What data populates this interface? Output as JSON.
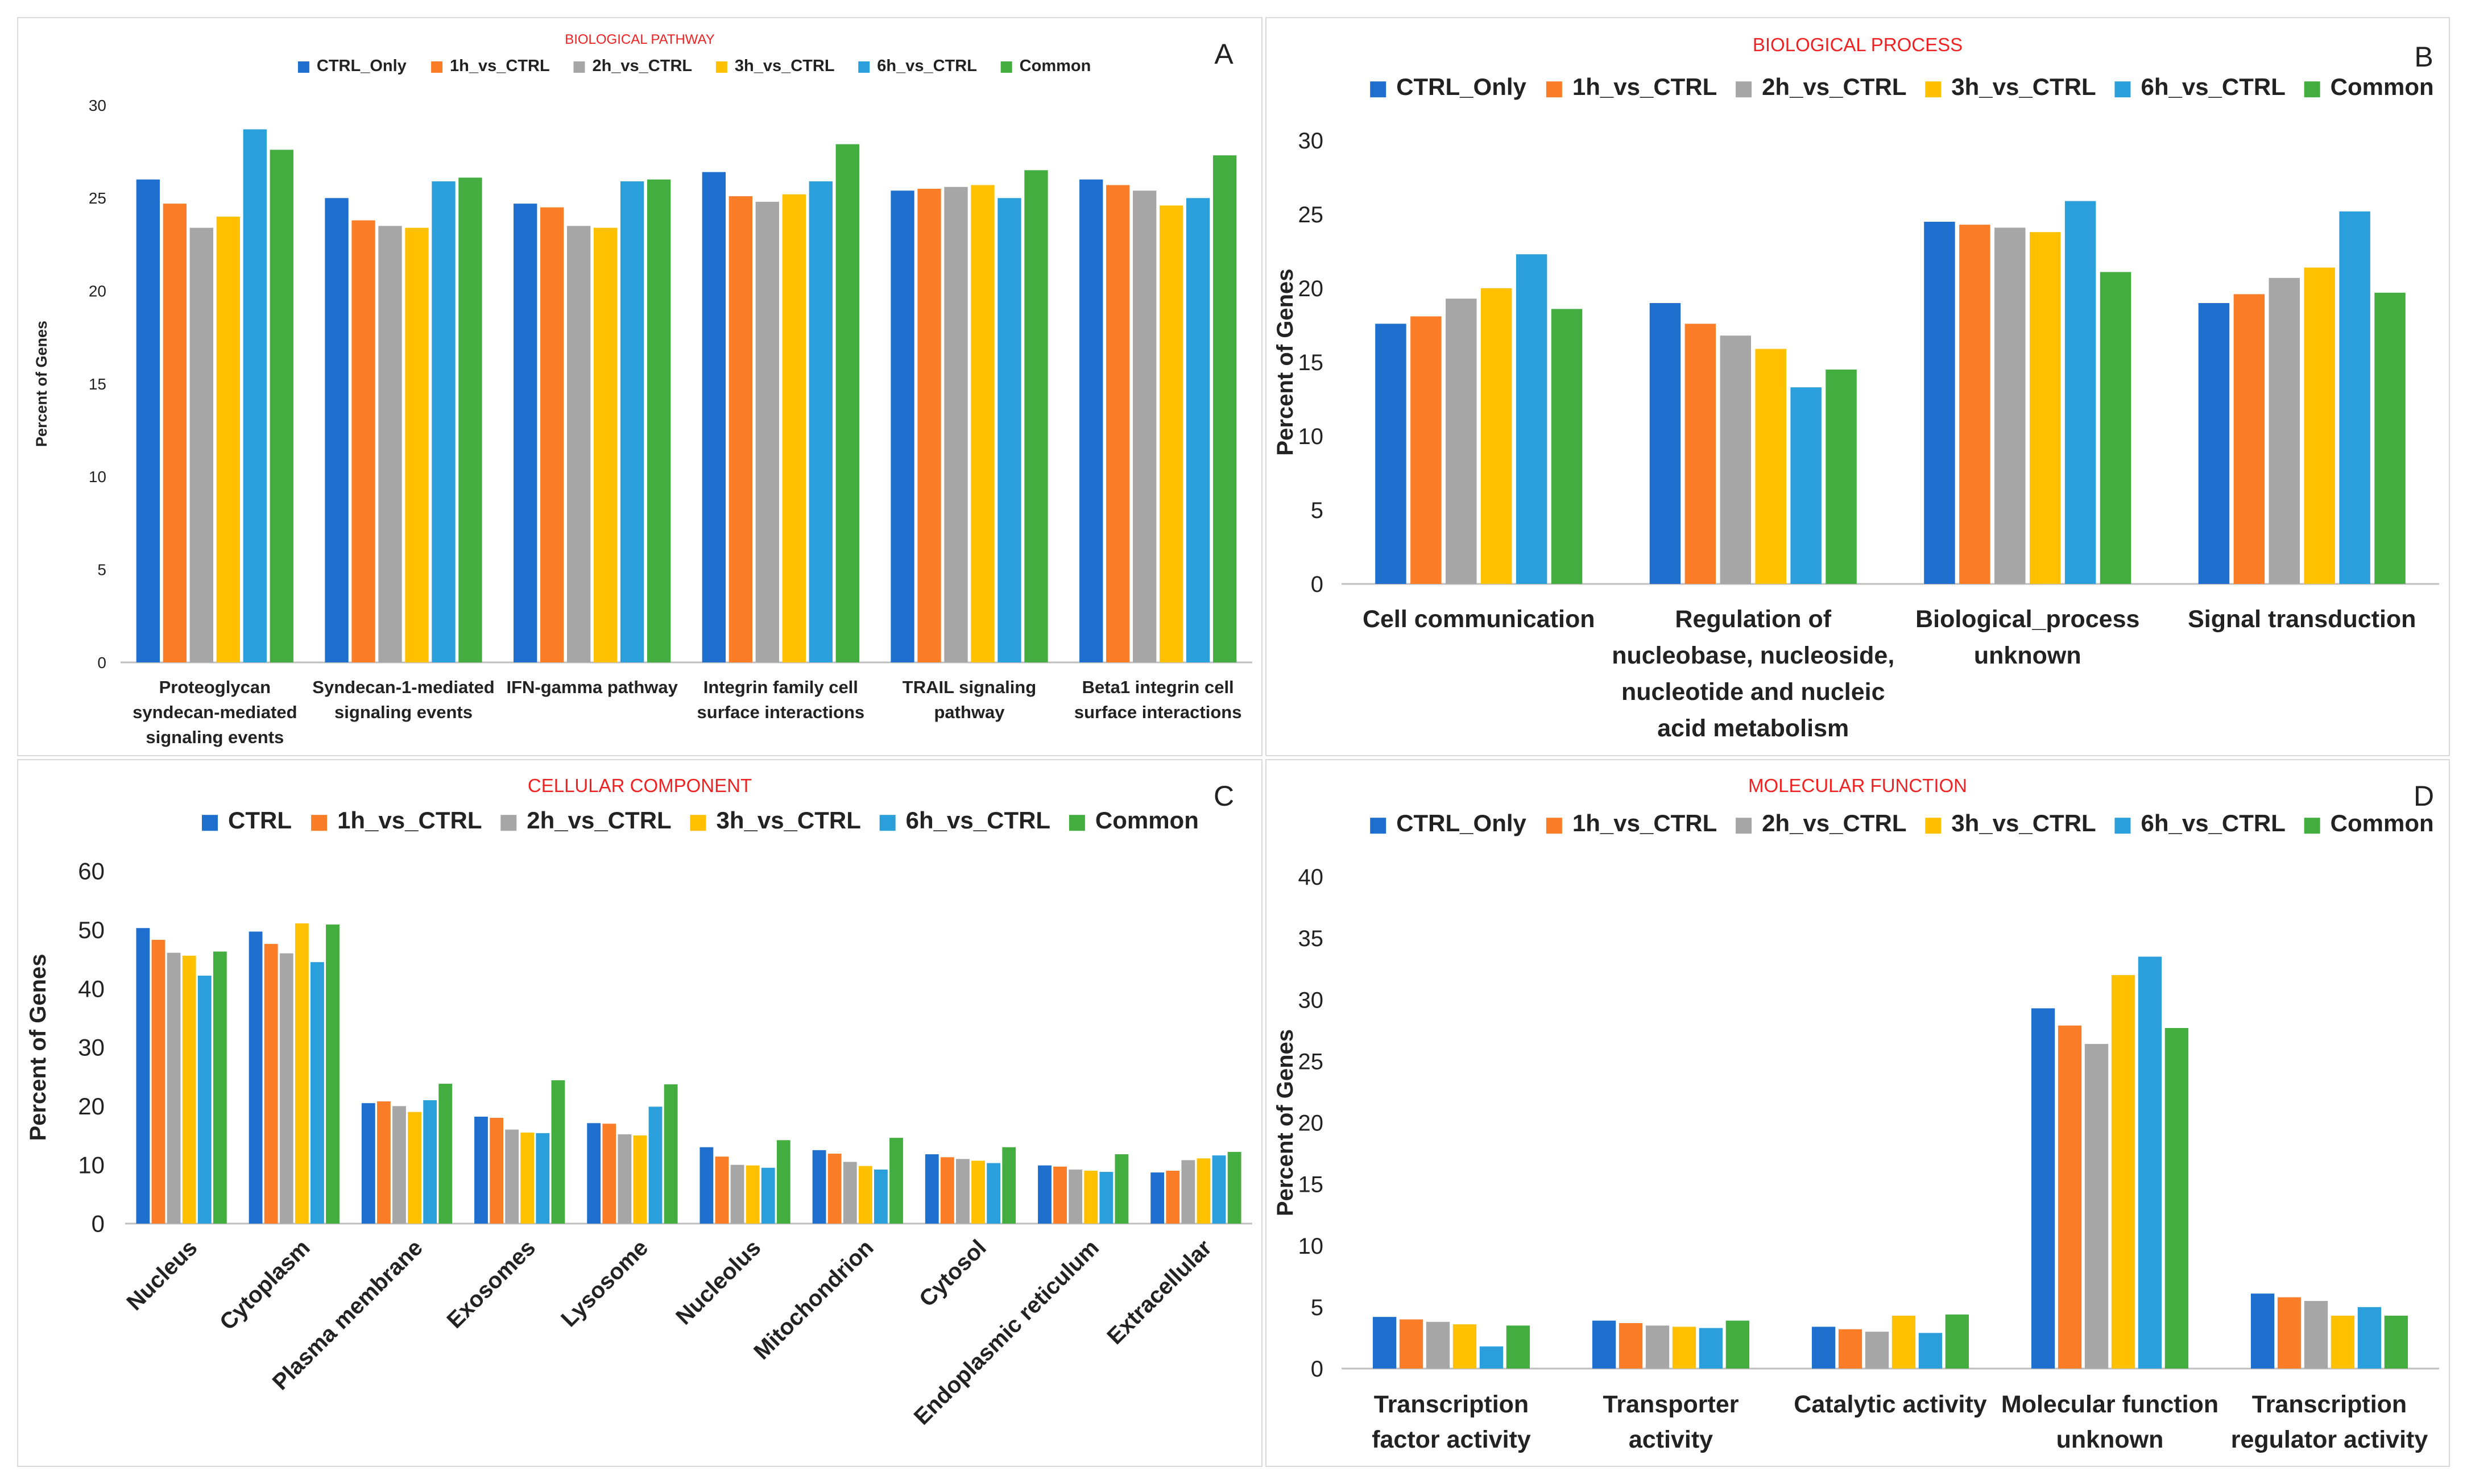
{
  "colors": [
    "#1f6fcf",
    "#fb7d28",
    "#a6a6a6",
    "#ffc000",
    "#2b9fdb",
    "#43ad3f"
  ],
  "title_color": "#ee2222",
  "chart_data": [
    {
      "id": "A",
      "panel_label": "A",
      "type": "bar",
      "title": "BIOLOGICAL PATHWAY",
      "ylabel": "Percent of Genes",
      "xlabel": "",
      "ylim": [
        0,
        30
      ],
      "yticks": [
        "0",
        "5",
        "10",
        "15",
        "20",
        "25",
        "30"
      ],
      "grid": false,
      "legend": "top-center",
      "categories": [
        [
          "Proteoglycan",
          "syndecan-mediated",
          "signaling events"
        ],
        [
          "Syndecan-1-mediated",
          "signaling events"
        ],
        [
          "IFN-gamma pathway"
        ],
        [
          "Integrin family cell",
          "surface interactions"
        ],
        [
          "TRAIL signaling",
          "pathway"
        ],
        [
          "Beta1 integrin cell",
          "surface interactions"
        ]
      ],
      "series": [
        {
          "name": "CTRL_Only",
          "values": [
            26.0,
            25.0,
            24.7,
            26.4,
            25.4,
            26.0
          ]
        },
        {
          "name": "1h_vs_CTRL",
          "values": [
            24.7,
            23.8,
            24.5,
            25.1,
            25.5,
            25.7
          ]
        },
        {
          "name": "2h_vs_CTRL",
          "values": [
            23.4,
            23.5,
            23.5,
            24.8,
            25.6,
            25.4
          ]
        },
        {
          "name": "3h_vs_CTRL",
          "values": [
            24.0,
            23.4,
            23.4,
            25.2,
            25.7,
            24.6
          ]
        },
        {
          "name": "6h_vs_CTRL",
          "values": [
            28.7,
            25.9,
            25.9,
            25.9,
            25.0,
            25.0
          ]
        },
        {
          "name": "Common",
          "values": [
            27.6,
            26.1,
            26.0,
            27.9,
            26.5,
            27.3
          ]
        }
      ]
    },
    {
      "id": "B",
      "panel_label": "B",
      "type": "bar",
      "title": "BIOLOGICAL PROCESS",
      "ylabel": "Percent of Genes",
      "xlabel": "",
      "ylim": [
        0,
        30
      ],
      "yticks": [
        "0",
        "5",
        "10",
        "15",
        "20",
        "25",
        "30"
      ],
      "grid": false,
      "legend": "top-center",
      "categories": [
        [
          "Cell communication"
        ],
        [
          "Regulation of",
          "nucleobase, nucleoside,",
          "nucleotide and nucleic",
          "acid metabolism"
        ],
        [
          "Biological_process",
          "unknown"
        ],
        [
          "Signal transduction"
        ]
      ],
      "series": [
        {
          "name": "CTRL_Only",
          "values": [
            17.6,
            19.0,
            24.5,
            19.0
          ]
        },
        {
          "name": "1h_vs_CTRL",
          "values": [
            18.1,
            17.6,
            24.3,
            19.6
          ]
        },
        {
          "name": "2h_vs_CTRL",
          "values": [
            19.3,
            16.8,
            24.1,
            20.7
          ]
        },
        {
          "name": "3h_vs_CTRL",
          "values": [
            20.0,
            15.9,
            23.8,
            21.4
          ]
        },
        {
          "name": "6h_vs_CTRL",
          "values": [
            22.3,
            13.3,
            25.9,
            25.2
          ]
        },
        {
          "name": "Common",
          "values": [
            18.6,
            14.5,
            21.1,
            19.7
          ]
        }
      ]
    },
    {
      "id": "C",
      "panel_label": "C",
      "type": "bar",
      "title": "CELLULAR COMPONENT",
      "ylabel": "Percent of Genes",
      "xlabel": "",
      "ylim": [
        0,
        60
      ],
      "yticks": [
        "0",
        "10",
        "20",
        "30",
        "40",
        "50",
        "60"
      ],
      "grid": false,
      "legend": "top-center",
      "categories": [
        [
          "Nucleus"
        ],
        [
          "Cytoplasm"
        ],
        [
          "Plasma membrane"
        ],
        [
          "Exosomes"
        ],
        [
          "Lysosome"
        ],
        [
          "Nucleolus"
        ],
        [
          "Mitochondrion"
        ],
        [
          "Cytosol"
        ],
        [
          "Endoplasmic reticulum"
        ],
        [
          "Extracellular"
        ]
      ],
      "series": [
        {
          "name": "CTRL",
          "values": [
            50.3,
            49.7,
            20.5,
            18.2,
            17.1,
            13.0,
            12.5,
            11.8,
            9.9,
            8.7
          ]
        },
        {
          "name": "1h_vs_CTRL",
          "values": [
            48.3,
            47.6,
            20.8,
            18.0,
            17.0,
            11.4,
            11.9,
            11.3,
            9.7,
            9.0
          ]
        },
        {
          "name": "2h_vs_CTRL",
          "values": [
            46.1,
            46.0,
            20.0,
            16.0,
            15.2,
            10.0,
            10.5,
            11.0,
            9.2,
            10.8
          ]
        },
        {
          "name": "3h_vs_CTRL",
          "values": [
            45.6,
            51.1,
            19.0,
            15.5,
            15.0,
            9.9,
            9.8,
            10.7,
            9.0,
            11.1
          ]
        },
        {
          "name": "6h_vs_CTRL",
          "values": [
            42.2,
            44.5,
            21.0,
            15.4,
            19.9,
            9.5,
            9.2,
            10.3,
            8.8,
            11.6
          ]
        },
        {
          "name": "Common",
          "values": [
            46.3,
            50.9,
            23.8,
            24.4,
            23.7,
            14.2,
            14.6,
            13.0,
            11.8,
            12.2
          ]
        }
      ]
    },
    {
      "id": "D",
      "panel_label": "D",
      "type": "bar",
      "title": "MOLECULAR FUNCTION",
      "ylabel": "Percent of Genes",
      "xlabel": "",
      "ylim": [
        0,
        40
      ],
      "yticks": [
        "0",
        "5",
        "10",
        "15",
        "20",
        "25",
        "30",
        "35",
        "40"
      ],
      "grid": false,
      "legend": "top-center",
      "categories": [
        [
          "Transcription",
          "factor activity"
        ],
        [
          "Transporter",
          "activity"
        ],
        [
          "Catalytic activity"
        ],
        [
          "Molecular function",
          "unknown"
        ],
        [
          "Transcription",
          "regulator activity"
        ]
      ],
      "series": [
        {
          "name": "CTRL_Only",
          "values": [
            4.2,
            3.9,
            3.4,
            29.3,
            6.1
          ]
        },
        {
          "name": "1h_vs_CTRL",
          "values": [
            4.0,
            3.7,
            3.2,
            27.9,
            5.8
          ]
        },
        {
          "name": "2h_vs_CTRL",
          "values": [
            3.8,
            3.5,
            3.0,
            26.4,
            5.5
          ]
        },
        {
          "name": "3h_vs_CTRL",
          "values": [
            3.6,
            3.4,
            4.3,
            32.0,
            4.3
          ]
        },
        {
          "name": "6h_vs_CTRL",
          "values": [
            1.8,
            3.3,
            2.9,
            33.5,
            5.0
          ]
        },
        {
          "name": "Common",
          "values": [
            3.5,
            3.9,
            4.4,
            27.7,
            4.3
          ]
        }
      ]
    }
  ]
}
